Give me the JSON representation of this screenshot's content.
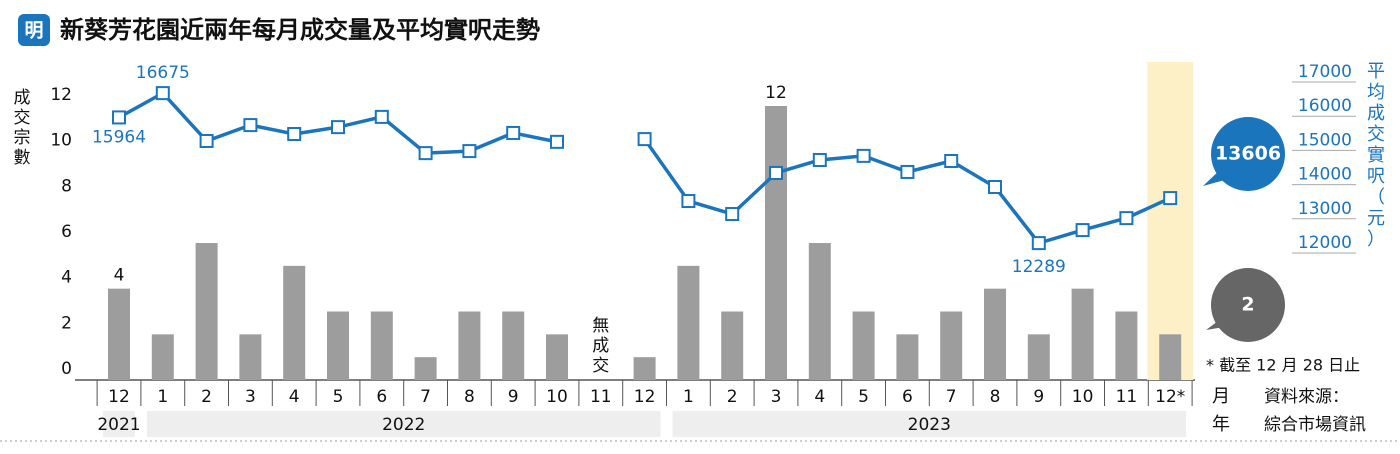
{
  "header": {
    "logo": "明",
    "title": "新葵芳花園近兩年每月成交量及平均實呎走勢"
  },
  "chart_data": {
    "type": "bar-line",
    "y_label": "成交宗數",
    "y2_label": "平均成交實呎（元）",
    "categories": [
      "12",
      "1",
      "2",
      "3",
      "4",
      "5",
      "6",
      "7",
      "8",
      "9",
      "10",
      "11",
      "12",
      "1",
      "2",
      "3",
      "4",
      "5",
      "6",
      "7",
      "8",
      "9",
      "10",
      "11",
      "12*"
    ],
    "years": [
      "2021",
      "2022",
      "2023"
    ],
    "month_label": "月",
    "year_label": "年",
    "series": [
      {
        "name": "成交宗數",
        "color": "#9d9d9d",
        "values": [
          4,
          2,
          6,
          2,
          5,
          3,
          3,
          1,
          3,
          3,
          2,
          0,
          1,
          5,
          3,
          12,
          6,
          3,
          2,
          3,
          4,
          2,
          4,
          3,
          2
        ],
        "value_labels": [
          "4",
          null,
          null,
          null,
          null,
          null,
          null,
          null,
          null,
          null,
          null,
          "無成交",
          null,
          null,
          null,
          "12",
          null,
          null,
          null,
          null,
          null,
          null,
          null,
          null,
          "2"
        ]
      },
      {
        "name": "平均成交實呎",
        "color": "#1b75bc",
        "axis": "y2",
        "values": [
          15964,
          16675,
          15275,
          15740,
          15480,
          15680,
          15980,
          14920,
          14980,
          15510,
          15250,
          null,
          15330,
          13520,
          13140,
          14340,
          14720,
          14840,
          14370,
          14690,
          13930,
          12289,
          12670,
          13020,
          13606
        ],
        "value_labels": [
          "15964",
          "16675",
          null,
          null,
          null,
          null,
          null,
          null,
          null,
          null,
          null,
          null,
          null,
          null,
          null,
          null,
          null,
          null,
          null,
          null,
          null,
          "12289",
          null,
          null,
          "13606"
        ]
      }
    ],
    "ylim": [
      0,
      12
    ],
    "yticks": [
      0,
      2,
      4,
      6,
      8,
      10,
      12
    ],
    "y2lim": [
      12000,
      17000
    ],
    "y2ticks": [
      12000,
      13000,
      14000,
      15000,
      16000,
      17000
    ],
    "highlight_color": "#fdf0c6",
    "note": "* 截至 12 月 28 日止",
    "source": [
      "資料來源：",
      "綜合市場資訊"
    ]
  }
}
